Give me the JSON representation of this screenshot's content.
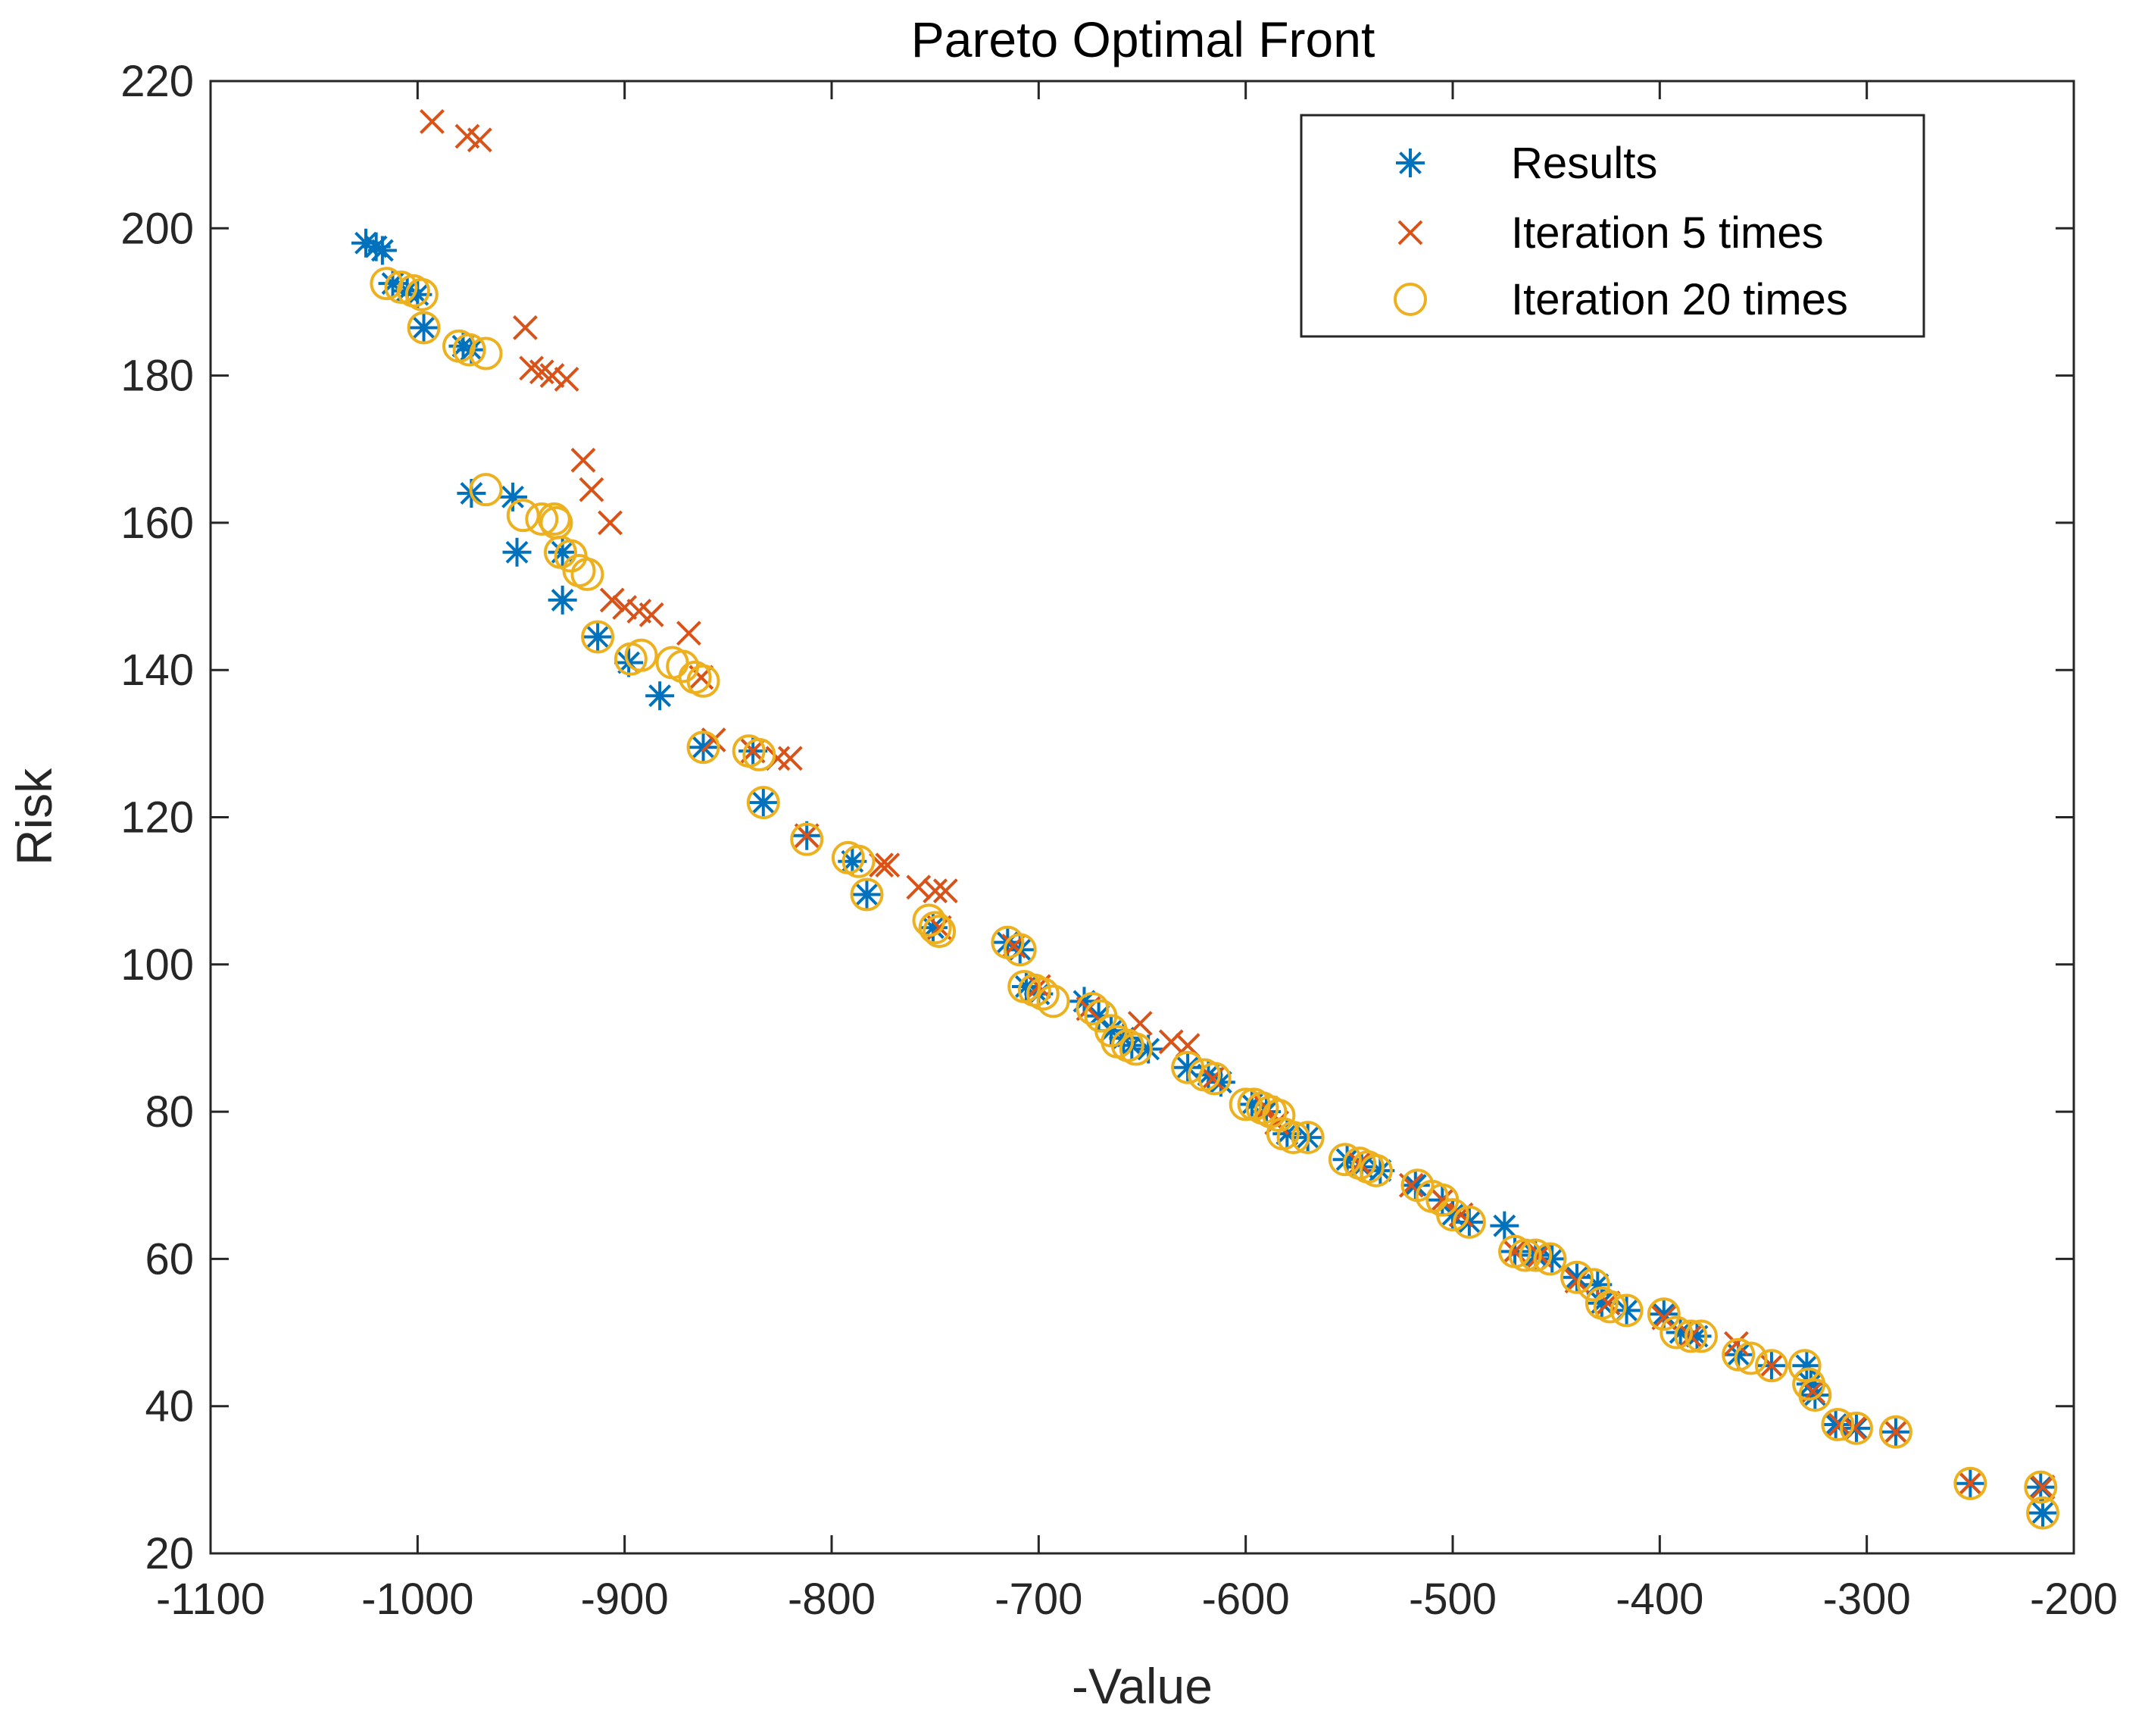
{
  "chart_data": {
    "type": "scatter",
    "title": "Pareto Optimal Front",
    "xlabel": "-Value",
    "ylabel": "Risk",
    "xlim": [
      -1100,
      -200
    ],
    "ylim": [
      20,
      220
    ],
    "xticks": [
      -1100,
      -1000,
      -900,
      -800,
      -700,
      -600,
      -500,
      -400,
      -300,
      -200
    ],
    "yticks": [
      20,
      40,
      60,
      80,
      100,
      120,
      140,
      160,
      180,
      200,
      220
    ],
    "grid": false,
    "legend_position": "top-right",
    "series": [
      {
        "name": "Results",
        "marker": "asterisk",
        "color": "#0072BD",
        "points": [
          [
            -1025,
            198
          ],
          [
            -1020,
            197.5
          ],
          [
            -1017,
            197
          ],
          [
            -1012,
            192.5
          ],
          [
            -1005,
            191.5
          ],
          [
            -1000,
            191
          ],
          [
            -997,
            186.5
          ],
          [
            -978,
            184
          ],
          [
            -974,
            183.5
          ],
          [
            -974,
            164
          ],
          [
            -954,
            163.5
          ],
          [
            -952,
            156
          ],
          [
            -930,
            156
          ],
          [
            -930,
            149.5
          ],
          [
            -913,
            144.5
          ],
          [
            -898,
            141
          ],
          [
            -883,
            136.5
          ],
          [
            -862,
            129.5
          ],
          [
            -838,
            129
          ],
          [
            -833,
            122
          ],
          [
            -812,
            117.5
          ],
          [
            -790,
            114
          ],
          [
            -783,
            109.5
          ],
          [
            -751,
            105
          ],
          [
            -715,
            103
          ],
          [
            -709,
            102
          ],
          [
            -706,
            97
          ],
          [
            -700,
            96
          ],
          [
            -678,
            95
          ],
          [
            -671,
            93
          ],
          [
            -665,
            91
          ],
          [
            -659,
            90
          ],
          [
            -655,
            89
          ],
          [
            -647,
            88.5
          ],
          [
            -628,
            86
          ],
          [
            -618,
            85
          ],
          [
            -612,
            84
          ],
          [
            -597,
            81
          ],
          [
            -590,
            80
          ],
          [
            -580,
            77
          ],
          [
            -570,
            76.5
          ],
          [
            -551,
            73.5
          ],
          [
            -544,
            72.5
          ],
          [
            -535,
            72
          ],
          [
            -518,
            70
          ],
          [
            -505,
            68
          ],
          [
            -500,
            66
          ],
          [
            -492,
            65
          ],
          [
            -475,
            64.5
          ],
          [
            -470,
            61
          ],
          [
            -460,
            60.5
          ],
          [
            -452,
            60
          ],
          [
            -440,
            57.5
          ],
          [
            -430,
            56.5
          ],
          [
            -428,
            54
          ],
          [
            -416,
            53
          ],
          [
            -398,
            52.5
          ],
          [
            -390,
            50
          ],
          [
            -382,
            49.5
          ],
          [
            -362,
            47
          ],
          [
            -346,
            45.5
          ],
          [
            -329,
            45.5
          ],
          [
            -327,
            43
          ],
          [
            -325,
            41.5
          ],
          [
            -315,
            37.5
          ],
          [
            -305,
            37
          ],
          [
            -286,
            36.5
          ],
          [
            -250,
            29.5
          ],
          [
            -216,
            29
          ],
          [
            -215,
            25.5
          ]
        ]
      },
      {
        "name": "Iteration 5 times",
        "marker": "x",
        "color": "#D95319",
        "points": [
          [
            -993,
            214.5
          ],
          [
            -976,
            212.5
          ],
          [
            -970,
            212
          ],
          [
            -948,
            186.5
          ],
          [
            -945,
            181
          ],
          [
            -940,
            180.5
          ],
          [
            -935,
            180
          ],
          [
            -928,
            179.5
          ],
          [
            -920,
            168.5
          ],
          [
            -916,
            164.5
          ],
          [
            -907,
            160
          ],
          [
            -906,
            149.5
          ],
          [
            -900,
            148.5
          ],
          [
            -893,
            148
          ],
          [
            -887,
            147.5
          ],
          [
            -869,
            145
          ],
          [
            -863,
            139
          ],
          [
            -857,
            130.5
          ],
          [
            -838,
            129
          ],
          [
            -826,
            128
          ],
          [
            -820,
            128
          ],
          [
            -812,
            117.5
          ],
          [
            -776,
            113.5
          ],
          [
            -773,
            113.5
          ],
          [
            -758,
            110.5
          ],
          [
            -750,
            110
          ],
          [
            -745,
            110
          ],
          [
            -748,
            105
          ],
          [
            -712,
            102.5
          ],
          [
            -700,
            97
          ],
          [
            -676,
            94
          ],
          [
            -651,
            92
          ],
          [
            -636,
            89.5
          ],
          [
            -628,
            89
          ],
          [
            -616,
            84.5
          ],
          [
            -590,
            80.5
          ],
          [
            -585,
            78.5
          ],
          [
            -545,
            73
          ],
          [
            -520,
            70
          ],
          [
            -505,
            68
          ],
          [
            -496,
            66
          ],
          [
            -470,
            61
          ],
          [
            -458,
            60.5
          ],
          [
            -440,
            57
          ],
          [
            -425,
            54
          ],
          [
            -398,
            52
          ],
          [
            -385,
            49.5
          ],
          [
            -363,
            48.5
          ],
          [
            -346,
            45.5
          ],
          [
            -326,
            42
          ],
          [
            -313,
            37.5
          ],
          [
            -306,
            37
          ],
          [
            -286,
            36.5
          ],
          [
            -250,
            29.5
          ],
          [
            -215,
            29
          ]
        ]
      },
      {
        "name": "Iteration 20 times",
        "marker": "circle",
        "color": "#EDB120",
        "points": [
          [
            -1015,
            192.5
          ],
          [
            -1008,
            192
          ],
          [
            -1002,
            191.5
          ],
          [
            -998,
            191
          ],
          [
            -997,
            186.5
          ],
          [
            -980,
            184
          ],
          [
            -975,
            183.5
          ],
          [
            -967,
            183
          ],
          [
            -967,
            164.5
          ],
          [
            -949,
            161
          ],
          [
            -940,
            160.5
          ],
          [
            -934,
            160.5
          ],
          [
            -933,
            160
          ],
          [
            -931,
            156
          ],
          [
            -926,
            155.5
          ],
          [
            -922,
            153.5
          ],
          [
            -918,
            153
          ],
          [
            -913,
            144.5
          ],
          [
            -897,
            141.5
          ],
          [
            -892,
            142
          ],
          [
            -877,
            141
          ],
          [
            -872,
            140.5
          ],
          [
            -866,
            139
          ],
          [
            -862,
            138.5
          ],
          [
            -862,
            129.5
          ],
          [
            -840,
            129
          ],
          [
            -835,
            128.5
          ],
          [
            -833,
            122
          ],
          [
            -812,
            117
          ],
          [
            -792,
            114.5
          ],
          [
            -787,
            114
          ],
          [
            -783,
            109.5
          ],
          [
            -753,
            106
          ],
          [
            -750,
            105
          ],
          [
            -748,
            104.5
          ],
          [
            -715,
            103
          ],
          [
            -709,
            102
          ],
          [
            -707,
            97
          ],
          [
            -702,
            96.5
          ],
          [
            -698,
            96
          ],
          [
            -693,
            95
          ],
          [
            -674,
            94
          ],
          [
            -670,
            93
          ],
          [
            -665,
            91
          ],
          [
            -662,
            89.5
          ],
          [
            -657,
            89
          ],
          [
            -653,
            88.5
          ],
          [
            -628,
            86
          ],
          [
            -620,
            85
          ],
          [
            -615,
            84.5
          ],
          [
            -600,
            81
          ],
          [
            -596,
            81
          ],
          [
            -592,
            80.5
          ],
          [
            -588,
            80
          ],
          [
            -584,
            79.5
          ],
          [
            -582,
            77
          ],
          [
            -577,
            76.5
          ],
          [
            -570,
            76.5
          ],
          [
            -552,
            73.5
          ],
          [
            -545,
            73
          ],
          [
            -541,
            72.5
          ],
          [
            -537,
            72
          ],
          [
            -517,
            70
          ],
          [
            -510,
            68.5
          ],
          [
            -505,
            68
          ],
          [
            -500,
            66
          ],
          [
            -492,
            65
          ],
          [
            -470,
            61
          ],
          [
            -465,
            60.5
          ],
          [
            -460,
            60.5
          ],
          [
            -453,
            60
          ],
          [
            -440,
            57.5
          ],
          [
            -432,
            56.5
          ],
          [
            -428,
            54
          ],
          [
            -424,
            53.5
          ],
          [
            -416,
            53
          ],
          [
            -398,
            52.5
          ],
          [
            -392,
            50
          ],
          [
            -385,
            49.5
          ],
          [
            -380,
            49.5
          ],
          [
            -362,
            47
          ],
          [
            -356,
            46.5
          ],
          [
            -346,
            45.5
          ],
          [
            -330,
            45.5
          ],
          [
            -328,
            43
          ],
          [
            -325,
            41.5
          ],
          [
            -314,
            37.5
          ],
          [
            -305,
            37
          ],
          [
            -286,
            36.5
          ],
          [
            -250,
            29.5
          ],
          [
            -216,
            29
          ],
          [
            -215,
            25.5
          ]
        ]
      }
    ]
  }
}
